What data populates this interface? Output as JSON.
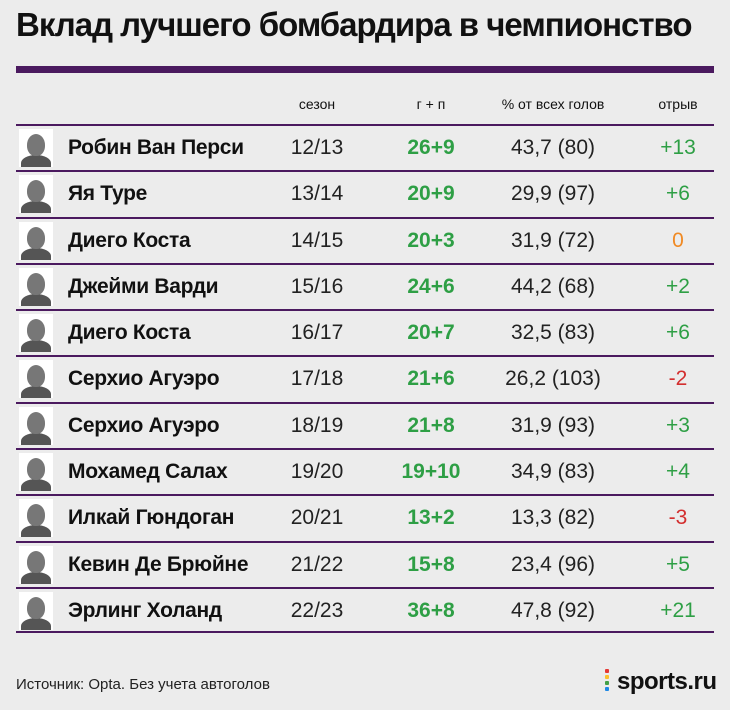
{
  "title": "Вклад лучшего бомбардира в чемпионство",
  "headers": {
    "season": "сезон",
    "goals_assists": "г + п",
    "percent": "% от всех голов",
    "gap": "отрыв"
  },
  "colors": {
    "accent_rule": "#4b1a5f",
    "green": "#2e9f45",
    "orange": "#f08a24",
    "red": "#d32f2f"
  },
  "chart_data": {
    "type": "table",
    "title": "Вклад лучшего бомбардира в чемпионство",
    "columns": [
      "сезон",
      "г + п",
      "% от всех голов",
      "отрыв"
    ],
    "rows": [
      {
        "player": "Робин Ван Перси",
        "season": "12/13",
        "goals_assists": "26+9",
        "percent": "43,7 (80)",
        "gap": "+13",
        "gap_value": 13
      },
      {
        "player": "Яя Туре",
        "season": "13/14",
        "goals_assists": "20+9",
        "percent": "29,9 (97)",
        "gap": "+6",
        "gap_value": 6
      },
      {
        "player": "Диего Коста",
        "season": "14/15",
        "goals_assists": "20+3",
        "percent": "31,9 (72)",
        "gap": "0",
        "gap_value": 0
      },
      {
        "player": "Джейми Варди",
        "season": "15/16",
        "goals_assists": "24+6",
        "percent": "44,2 (68)",
        "gap": "+2",
        "gap_value": 2
      },
      {
        "player": "Диего Коста",
        "season": "16/17",
        "goals_assists": "20+7",
        "percent": "32,5 (83)",
        "gap": "+6",
        "gap_value": 6
      },
      {
        "player": "Серхио Агуэро",
        "season": "17/18",
        "goals_assists": "21+6",
        "percent": "26,2 (103)",
        "gap": "-2",
        "gap_value": -2
      },
      {
        "player": "Серхио Агуэро",
        "season": "18/19",
        "goals_assists": "21+8",
        "percent": "31,9 (93)",
        "gap": "+3",
        "gap_value": 3
      },
      {
        "player": "Мохамед Салах",
        "season": "19/20",
        "goals_assists": "19+10",
        "percent": "34,9 (83)",
        "gap": "+4",
        "gap_value": 4
      },
      {
        "player": "Илкай Гюндоган",
        "season": "20/21",
        "goals_assists": "13+2",
        "percent": "13,3 (82)",
        "gap": "-3",
        "gap_value": -3
      },
      {
        "player": "Кевин Де Брюйне",
        "season": "21/22",
        "goals_assists": "15+8",
        "percent": "23,4 (96)",
        "gap": "+5",
        "gap_value": 5
      },
      {
        "player": "Эрлинг Холанд",
        "season": "22/23",
        "goals_assists": "36+8",
        "percent": "47,8 (92)",
        "gap": "+21",
        "gap_value": 21
      }
    ]
  },
  "footer": {
    "source": "Источник: Opta. Без учета автоголов",
    "brand": "sports.ru",
    "brand_icon": "sports-ru-logo-icon"
  }
}
